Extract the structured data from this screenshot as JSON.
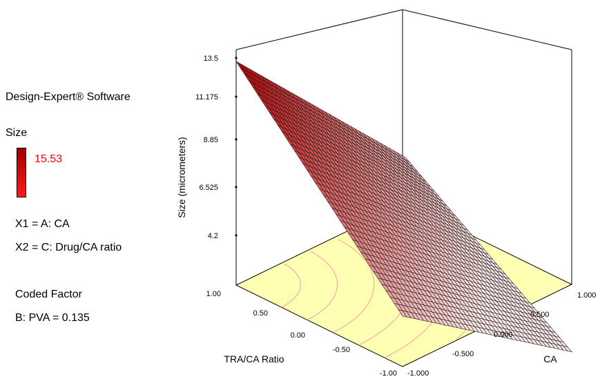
{
  "app": {
    "software": "Design-Expert® Software",
    "response": "Size",
    "legend_max": "15.53",
    "x1": "X1 = A: CA",
    "x2": "X2 = C: Drug/CA ratio",
    "coded_factor_title": "Coded Factor",
    "coded_factor": "B: PVA = 0.135"
  },
  "colors": {
    "legend_max_text": "#ff0000",
    "surface_low": "#ffffff",
    "surface_high": "#c00000",
    "floor": "#ffffb4",
    "contour": "#ff9a9a",
    "grid_line": "#000000"
  },
  "chart_data": {
    "type": "surface3d",
    "zlabel": "Size (micrometers)",
    "xlabel": "CA",
    "ylabel": "TRA/CA Ratio",
    "z_ticks": [
      "4.2",
      "6.525",
      "8.85",
      "11.175",
      "13.5"
    ],
    "x_ticks": [
      "-1.000",
      "-0.500",
      "0.000",
      "0.500",
      "1.000"
    ],
    "y_ticks": [
      "-1.00",
      "-0.50",
      "0.00",
      "0.50",
      "1.00"
    ],
    "zlim": [
      4.2,
      13.5
    ],
    "xlim": [
      -1,
      1
    ],
    "ylim": [
      -1,
      1
    ],
    "corners": [
      {
        "x": -1,
        "y": 1,
        "z": 13.5
      },
      {
        "x": 1,
        "y": 1,
        "z": 6.1
      },
      {
        "x": -1,
        "y": -1,
        "z": 6.3
      },
      {
        "x": 1,
        "y": -1,
        "z": 1.4
      }
    ],
    "floor_contours": true
  }
}
